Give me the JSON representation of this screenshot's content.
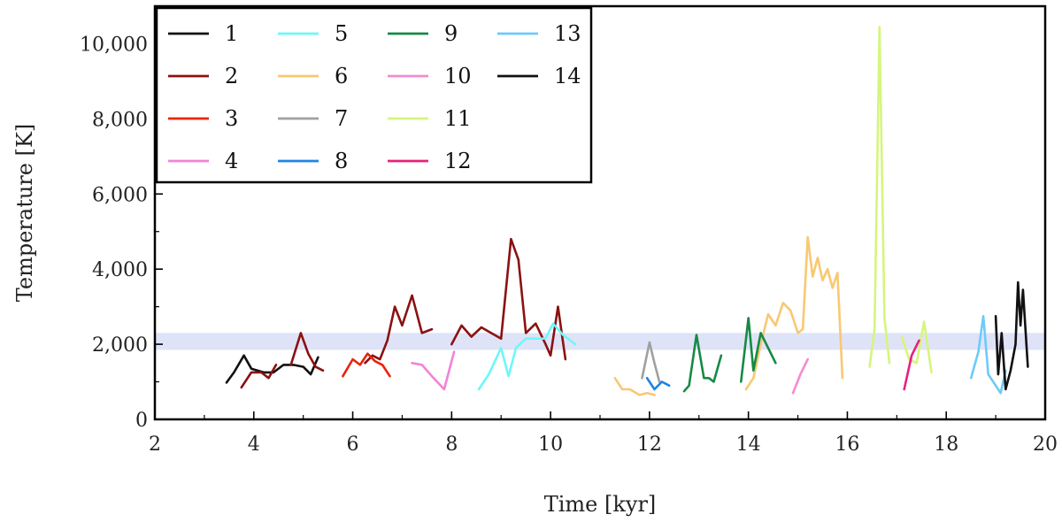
{
  "chart_data": {
    "type": "line",
    "xlabel": "Time [kyr]",
    "ylabel": "Temperature [K]",
    "xlim": [
      2,
      20
    ],
    "ylim": [
      0,
      11000
    ],
    "xticks": [
      2,
      4,
      6,
      8,
      10,
      12,
      14,
      16,
      18,
      20
    ],
    "xtick_labels": [
      "2",
      "4",
      "6",
      "8",
      "10",
      "12",
      "14",
      "16",
      "18",
      "20"
    ],
    "yticks": [
      0,
      2000,
      4000,
      6000,
      8000,
      10000
    ],
    "ytick_labels": [
      "0",
      "2,000",
      "4,000",
      "6,000",
      "8,000",
      "10,000"
    ],
    "band": {
      "y0": 1850,
      "y1": 2300,
      "color": "#dfe3f7"
    },
    "legend": {
      "placement": "top-left",
      "columns": 4
    },
    "series": [
      {
        "name": "1",
        "color": "#111111",
        "x": [
          3.45,
          3.6,
          3.8,
          3.95,
          4.2,
          4.4,
          4.6,
          4.8,
          5.0,
          5.15,
          5.3
        ],
        "y": [
          980,
          1250,
          1700,
          1350,
          1250,
          1250,
          1450,
          1450,
          1400,
          1200,
          1650
        ]
      },
      {
        "name": "2",
        "color": "#8b1111",
        "segments": [
          {
            "x": [
              3.75,
              3.95,
              4.15,
              4.3,
              4.45
            ],
            "y": [
              850,
              1250,
              1250,
              1100,
              1450
            ]
          },
          {
            "x": [
              4.75,
              4.95,
              5.1,
              5.25,
              5.4
            ],
            "y": [
              1450,
              2300,
              1750,
              1400,
              1300
            ]
          },
          {
            "x": [
              6.25,
              6.4,
              6.55,
              6.7,
              6.85,
              7.0,
              7.2,
              7.4,
              7.6
            ],
            "y": [
              1500,
              1700,
              1600,
              2100,
              3000,
              2500,
              3300,
              2300,
              2400
            ]
          },
          {
            "x": [
              8.0,
              8.2,
              8.4,
              8.6,
              8.8,
              9.0,
              9.2,
              9.35,
              9.5,
              9.7,
              9.9,
              10.0,
              10.15,
              10.3
            ],
            "y": [
              2000,
              2500,
              2200,
              2450,
              2300,
              2150,
              4800,
              4250,
              2300,
              2550,
              2000,
              1700,
              3000,
              1600
            ]
          }
        ]
      },
      {
        "name": "3",
        "color": "#e8240b",
        "x": [
          5.8,
          6.0,
          6.15,
          6.3,
          6.45,
          6.6,
          6.75
        ],
        "y": [
          1150,
          1600,
          1450,
          1750,
          1550,
          1450,
          1150
        ]
      },
      {
        "name": "4",
        "color": "#f282d8",
        "x": [
          7.2,
          7.4,
          7.6,
          7.85,
          8.05
        ],
        "y": [
          1500,
          1450,
          1150,
          800,
          1800
        ]
      },
      {
        "name": "5",
        "color": "#6ff7f7",
        "x": [
          8.55,
          8.75,
          9.0,
          9.15,
          9.3,
          9.5,
          9.7,
          9.9,
          10.05,
          10.25,
          10.5
        ],
        "y": [
          800,
          1200,
          1900,
          1150,
          1900,
          2150,
          2150,
          2150,
          2550,
          2250,
          2000
        ]
      },
      {
        "name": "6",
        "color": "#f9c872",
        "segments": [
          {
            "x": [
              11.3,
              11.45,
              11.6,
              11.8,
              11.95,
              12.1
            ],
            "y": [
              1100,
              800,
              800,
              650,
              700,
              650
            ]
          },
          {
            "x": [
              13.95,
              14.1,
              14.25,
              14.4,
              14.55,
              14.7,
              14.85,
              15.0,
              15.1,
              15.2,
              15.3,
              15.4,
              15.5,
              15.6,
              15.7,
              15.8,
              15.9
            ],
            "y": [
              800,
              1100,
              2000,
              2800,
              2500,
              3100,
              2900,
              2300,
              2400,
              4850,
              3800,
              4300,
              3700,
              4000,
              3500,
              3900,
              1100
            ]
          }
        ]
      },
      {
        "name": "7",
        "color": "#a0a0a0",
        "x": [
          11.85,
          12.0,
          12.1,
          12.2
        ],
        "y": [
          1100,
          2050,
          1500,
          1000
        ]
      },
      {
        "name": "8",
        "color": "#1e84e4",
        "x": [
          11.95,
          12.1,
          12.25,
          12.4
        ],
        "y": [
          1100,
          800,
          1000,
          900
        ]
      },
      {
        "name": "9",
        "color": "#168a44",
        "segments": [
          {
            "x": [
              12.7,
              12.8,
              12.95,
              13.1,
              13.2,
              13.3,
              13.45
            ],
            "y": [
              750,
              900,
              2250,
              1100,
              1100,
              1000,
              1700
            ]
          },
          {
            "x": [
              13.85,
              14.0,
              14.1,
              14.25,
              14.4,
              14.55
            ],
            "y": [
              1000,
              2700,
              1300,
              2300,
              1900,
              1500
            ]
          }
        ]
      },
      {
        "name": "10",
        "color": "#f58ad2",
        "x": [
          14.9,
          15.05,
          15.2
        ],
        "y": [
          700,
          1200,
          1600
        ]
      },
      {
        "name": "11",
        "color": "#d6f57d",
        "segments": [
          {
            "x": [
              16.45,
              16.55,
              16.65,
              16.75,
              16.85
            ],
            "y": [
              1400,
              2400,
              10450,
              2700,
              1500
            ]
          },
          {
            "x": [
              17.1,
              17.25,
              17.4,
              17.55,
              17.7
            ],
            "y": [
              2200,
              1600,
              1500,
              2600,
              1250
            ]
          }
        ]
      },
      {
        "name": "12",
        "color": "#e8207a",
        "x": [
          17.15,
          17.3,
          17.45
        ],
        "y": [
          800,
          1700,
          2100
        ]
      },
      {
        "name": "13",
        "color": "#6ecaf9",
        "x": [
          18.5,
          18.65,
          18.75,
          18.85,
          19.0,
          19.1,
          19.2
        ],
        "y": [
          1100,
          1800,
          2750,
          1200,
          900,
          700,
          1300
        ]
      },
      {
        "name": "14",
        "color": "#111111",
        "x": [
          19.0,
          19.05,
          19.12,
          19.2,
          19.3,
          19.4,
          19.45,
          19.5,
          19.55,
          19.65
        ],
        "y": [
          2750,
          1200,
          2300,
          800,
          1300,
          2000,
          3650,
          2500,
          3450,
          1400
        ]
      }
    ]
  }
}
